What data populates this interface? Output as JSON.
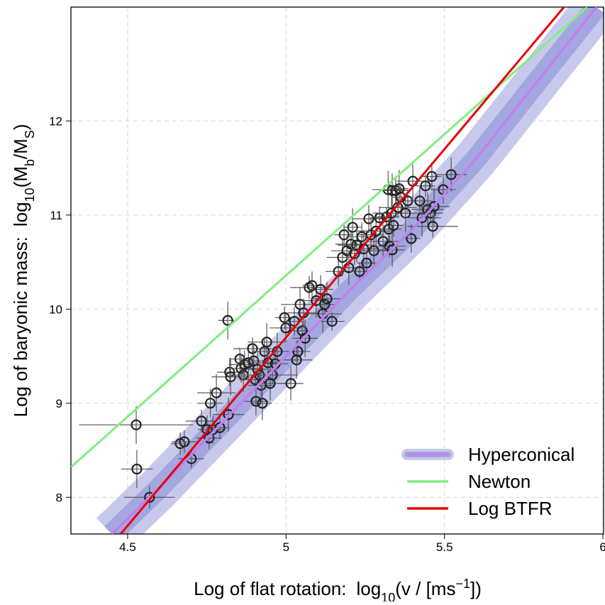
{
  "chart_data": {
    "type": "scatter",
    "x_label": [
      "Log of flat rotation:",
      "log",
      "10",
      "(v / [ms",
      "−1",
      "])"
    ],
    "y_label": [
      "Log of baryonic mass:",
      "log",
      "10",
      "(M",
      "b",
      "/M",
      "S",
      ")"
    ],
    "xlim": [
      4.321,
      6.002
    ],
    "ylim": [
      7.61,
      13.21
    ],
    "xticks": [
      4.5,
      5,
      5.5,
      6
    ],
    "yticks": [
      8,
      9,
      10,
      11,
      12
    ],
    "grid": true,
    "legend": "bottom-right",
    "series": [
      {
        "name": "Hyperconical",
        "color": "#c080ee",
        "band_color": "#c7c9ec",
        "band_inner_color": "#a3a7df",
        "x": [
          4.45,
          4.6,
          4.8,
          5.0,
          5.2,
          5.4,
          5.6,
          5.8,
          5.98
        ],
        "values": [
          7.61,
          8.1,
          8.8,
          9.5,
          10.2,
          10.85,
          11.6,
          12.45,
          13.21
        ]
      },
      {
        "name": "Newton",
        "color": "#80ee80",
        "x": [
          4.321,
          5.95
        ],
        "values": [
          8.32,
          13.21
        ]
      },
      {
        "name": "Log BTFR",
        "color": "#e8000b",
        "x": [
          4.478,
          5.877
        ],
        "values": [
          7.61,
          13.21
        ]
      }
    ],
    "points": {
      "color": "#222222",
      "error_color": "#555555",
      "x": [
        4.527,
        4.529,
        4.569,
        4.666,
        4.679,
        4.701,
        4.733,
        4.751,
        4.757,
        4.761,
        4.769,
        4.78,
        4.791,
        4.818,
        4.816,
        4.822,
        4.825,
        4.854,
        4.858,
        4.865,
        4.869,
        4.881,
        4.894,
        4.898,
        4.903,
        4.905,
        4.91,
        4.916,
        4.921,
        4.925,
        4.932,
        4.939,
        4.943,
        4.95,
        4.957,
        4.966,
        4.972,
        4.995,
        4.999,
        5.015,
        5.026,
        5.033,
        5.037,
        5.044,
        5.051,
        5.055,
        5.06,
        5.073,
        5.082,
        5.095,
        5.109,
        5.116,
        5.122,
        5.129,
        5.145,
        5.165,
        5.178,
        5.183,
        5.192,
        5.198,
        5.205,
        5.21,
        5.216,
        5.223,
        5.232,
        5.239,
        5.245,
        5.254,
        5.261,
        5.268,
        5.277,
        5.284,
        5.295,
        5.306,
        5.317,
        5.324,
        5.333,
        5.339,
        5.322,
        5.335,
        5.346,
        5.357,
        5.326,
        5.335,
        5.353,
        5.362,
        5.377,
        5.384,
        5.395,
        5.4,
        5.422,
        5.429,
        5.44,
        5.447,
        5.456,
        5.46,
        5.467,
        5.463,
        5.496,
        5.521
      ],
      "values": [
        8.77,
        8.3,
        8.0,
        8.57,
        8.59,
        8.41,
        8.81,
        8.72,
        8.63,
        9.0,
        8.72,
        9.11,
        8.74,
        8.88,
        9.88,
        9.33,
        9.28,
        9.47,
        9.37,
        9.3,
        9.41,
        9.43,
        9.58,
        9.45,
        9.25,
        9.02,
        9.36,
        9.3,
        9.19,
        9.0,
        9.55,
        9.65,
        9.43,
        9.21,
        9.3,
        9.42,
        9.55,
        9.91,
        9.8,
        9.21,
        9.87,
        9.46,
        9.55,
        10.05,
        9.77,
        9.96,
        9.69,
        10.23,
        10.25,
        10.09,
        10.21,
        9.95,
        10.05,
        10.11,
        9.87,
        10.4,
        10.55,
        10.79,
        10.62,
        10.44,
        10.69,
        10.87,
        10.59,
        10.68,
        10.4,
        10.77,
        10.64,
        10.49,
        10.96,
        10.79,
        10.62,
        10.83,
        10.97,
        10.72,
        10.98,
        10.85,
        11.02,
        10.89,
        11.27,
        11.26,
        11.26,
        11.28,
        10.67,
        10.63,
        11.08,
        11.19,
        11.02,
        11.15,
        10.75,
        11.36,
        11.15,
        10.97,
        11.31,
        11.06,
        11.02,
        11.41,
        11.09,
        10.88,
        11.27,
        11.43
      ],
      "xerr": [
        0.18,
        0.05,
        0.08,
        0.03,
        0.04,
        0.04,
        0.05,
        0.03,
        0.04,
        0.04,
        0.04,
        0.06,
        0.03,
        0.05,
        0.03,
        0.04,
        0.06,
        0.03,
        0.05,
        0.04,
        0.05,
        0.04,
        0.06,
        0.03,
        0.05,
        0.04,
        0.03,
        0.05,
        0.04,
        0.03,
        0.04,
        0.06,
        0.03,
        0.05,
        0.08,
        0.04,
        0.06,
        0.03,
        0.05,
        0.04,
        0.03,
        0.05,
        0.04,
        0.06,
        0.03,
        0.05,
        0.04,
        0.06,
        0.03,
        0.04,
        0.04,
        0.06,
        0.03,
        0.05,
        0.04,
        0.04,
        0.05,
        0.03,
        0.05,
        0.04,
        0.05,
        0.03,
        0.04,
        0.06,
        0.03,
        0.05,
        0.04,
        0.03,
        0.05,
        0.04,
        0.04,
        0.06,
        0.03,
        0.05,
        0.04,
        0.04,
        0.06,
        0.03,
        0.05,
        0.04,
        0.04,
        0.03,
        0.05,
        0.04,
        0.06,
        0.03,
        0.05,
        0.04,
        0.03,
        0.05,
        0.04,
        0.06,
        0.03,
        0.05,
        0.04,
        0.03,
        0.05,
        0.08,
        0.04,
        0.05
      ],
      "yerr": [
        0.2,
        0.2,
        0.12,
        0.12,
        0.12,
        0.1,
        0.12,
        0.15,
        0.12,
        0.15,
        0.15,
        0.2,
        0.12,
        0.18,
        0.2,
        0.15,
        0.2,
        0.12,
        0.15,
        0.18,
        0.15,
        0.2,
        0.12,
        0.18,
        0.1,
        0.15,
        0.2,
        0.12,
        0.15,
        0.18,
        0.15,
        0.2,
        0.12,
        0.18,
        0.1,
        0.15,
        0.2,
        0.12,
        0.15,
        0.18,
        0.15,
        0.2,
        0.12,
        0.18,
        0.1,
        0.15,
        0.2,
        0.12,
        0.15,
        0.18,
        0.15,
        0.2,
        0.12,
        0.18,
        0.1,
        0.15,
        0.2,
        0.12,
        0.15,
        0.18,
        0.15,
        0.2,
        0.12,
        0.18,
        0.1,
        0.15,
        0.2,
        0.12,
        0.15,
        0.18,
        0.15,
        0.2,
        0.12,
        0.18,
        0.1,
        0.15,
        0.2,
        0.12,
        0.2,
        0.18,
        0.15,
        0.2,
        0.12,
        0.18,
        0.1,
        0.15,
        0.2,
        0.12,
        0.15,
        0.18,
        0.15,
        0.2,
        0.12,
        0.18,
        0.1,
        0.15,
        0.2,
        0.12,
        0.15,
        0.18
      ]
    }
  }
}
